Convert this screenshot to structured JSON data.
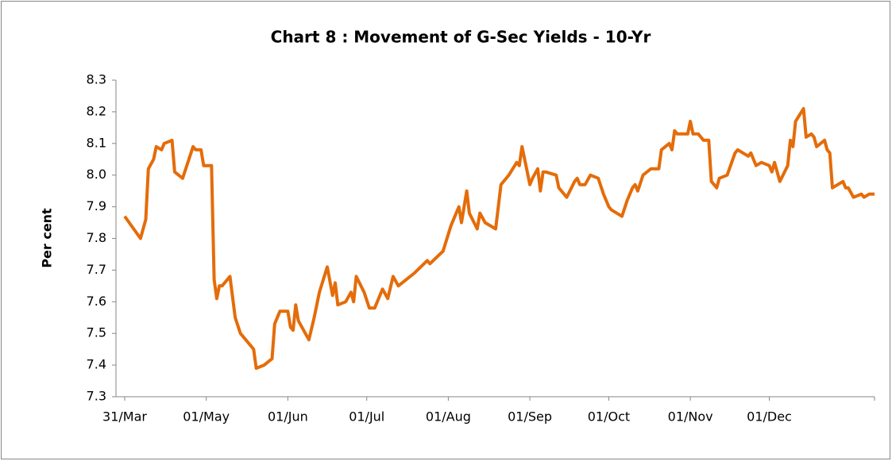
{
  "chart_data": {
    "type": "line",
    "title": "Chart 8 : Movement of G-Sec Yields - 10-Yr",
    "y_label": "Per cent",
    "series": [
      {
        "name": "10-Yr",
        "color": "#e46c0a",
        "x": [
          0,
          6,
          8,
          9,
          11,
          12,
          14,
          15,
          18,
          19,
          22,
          26,
          27,
          29,
          30,
          33,
          34,
          35,
          36,
          37,
          40,
          42,
          44,
          46,
          49,
          50,
          53,
          56,
          57,
          59,
          62,
          63,
          64,
          65,
          66,
          70,
          72,
          74,
          77,
          79,
          80,
          81,
          84,
          86,
          87,
          88,
          91,
          93,
          95,
          98,
          100,
          102,
          104,
          110,
          115,
          116,
          121,
          124,
          127,
          128,
          130,
          131,
          134,
          135,
          137,
          141,
          143,
          146,
          149,
          150,
          151,
          152,
          154,
          155,
          157,
          158,
          159,
          160,
          164,
          165,
          168,
          171,
          172,
          173,
          175,
          177,
          180,
          182,
          184,
          185,
          187,
          189,
          191,
          193,
          194,
          195,
          197,
          200,
          203,
          204,
          207,
          208,
          209,
          210,
          214,
          215,
          216,
          218,
          220,
          222,
          223,
          225,
          226,
          229,
          232,
          233,
          237,
          238,
          240,
          242,
          245,
          246,
          247,
          249,
          252,
          253,
          254,
          255,
          258,
          259,
          261,
          262,
          263,
          266,
          267,
          268,
          269,
          273,
          274,
          275,
          277,
          280,
          281,
          283,
          285
        ],
        "values": [
          7.87,
          7.8,
          7.86,
          8.02,
          8.05,
          8.09,
          8.08,
          8.1,
          8.11,
          8.01,
          7.99,
          8.09,
          8.08,
          8.08,
          8.03,
          8.03,
          7.67,
          7.61,
          7.65,
          7.65,
          7.68,
          7.55,
          7.5,
          7.48,
          7.45,
          7.39,
          7.4,
          7.42,
          7.53,
          7.57,
          7.57,
          7.52,
          7.51,
          7.59,
          7.54,
          7.48,
          7.55,
          7.63,
          7.71,
          7.62,
          7.66,
          7.59,
          7.6,
          7.63,
          7.6,
          7.68,
          7.63,
          7.58,
          7.58,
          7.64,
          7.61,
          7.68,
          7.65,
          7.69,
          7.73,
          7.72,
          7.76,
          7.84,
          7.9,
          7.85,
          7.95,
          7.88,
          7.83,
          7.88,
          7.85,
          7.83,
          7.97,
          8.0,
          8.04,
          8.03,
          8.09,
          8.05,
          7.97,
          7.99,
          8.02,
          7.95,
          8.01,
          8.01,
          8.0,
          7.96,
          7.93,
          7.98,
          7.99,
          7.97,
          7.97,
          8.0,
          7.99,
          7.94,
          7.9,
          7.89,
          7.88,
          7.87,
          7.92,
          7.96,
          7.97,
          7.95,
          8.0,
          8.02,
          8.02,
          8.08,
          8.1,
          8.08,
          8.14,
          8.13,
          8.13,
          8.17,
          8.13,
          8.13,
          8.11,
          8.11,
          7.98,
          7.96,
          7.99,
          8.0,
          8.07,
          8.08,
          8.06,
          8.07,
          8.03,
          8.04,
          8.03,
          8.01,
          8.04,
          7.98,
          8.03,
          8.11,
          8.09,
          8.17,
          8.21,
          8.12,
          8.13,
          8.12,
          8.09,
          8.11,
          8.08,
          8.07,
          7.96,
          7.98,
          7.96,
          7.96,
          7.93,
          7.94,
          7.93,
          7.94,
          7.94
        ]
      }
    ],
    "xlim": [
      0,
      285
    ],
    "xticks": [
      {
        "value": 0,
        "label": "31/Mar"
      },
      {
        "value": 31,
        "label": "01/May"
      },
      {
        "value": 62,
        "label": "01/Jun"
      },
      {
        "value": 92,
        "label": "01/Jul"
      },
      {
        "value": 123,
        "label": "01/Aug"
      },
      {
        "value": 154,
        "label": "01/Sep"
      },
      {
        "value": 184,
        "label": "01/Oct"
      },
      {
        "value": 215,
        "label": "01/Nov"
      },
      {
        "value": 245,
        "label": "01/Dec"
      }
    ],
    "ylim": [
      7.3,
      8.3
    ],
    "yticks": [
      7.3,
      7.4,
      7.5,
      7.6,
      7.7,
      7.8,
      7.9,
      {
        "value": 8.0,
        "label": "8.0"
      },
      8.1,
      8.2,
      8.3
    ],
    "grid": false
  }
}
